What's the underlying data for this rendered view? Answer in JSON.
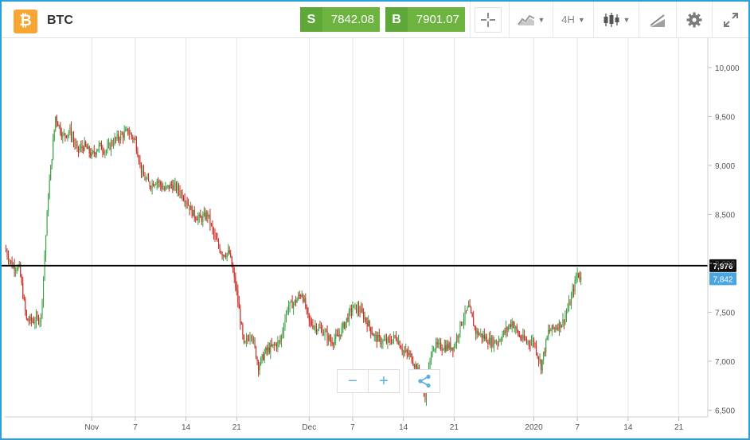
{
  "toolbar": {
    "logo_glyph": "₿",
    "symbol": "BTC",
    "sell_tag": "S",
    "sell_price": "7842.08",
    "buy_tag": "B",
    "buy_price": "7901.07",
    "interval": "4H",
    "icons": [
      "crosshair-icon",
      "line-chart-icon",
      "candlestick-icon",
      "drawing-tool-icon",
      "gear-icon",
      "expand-icon"
    ]
  },
  "zoom": {
    "minus": "−",
    "plus": "+",
    "share_icon": "share-icon"
  },
  "colors": {
    "up": "#3aa043",
    "down": "#c8281e",
    "accent": "#2a9fd8",
    "last_price": "#4aa6e0",
    "hline": "#000000"
  },
  "chart_data": {
    "type": "candlestick",
    "y_ticks": [
      "10,000",
      "9,500",
      "9,000",
      "8,500",
      "8,000",
      "7,500",
      "7,000",
      "6,500"
    ],
    "y_tick_values": [
      10000,
      9500,
      9000,
      8500,
      8000,
      7500,
      7000,
      6500
    ],
    "ylim": [
      6430,
      10300
    ],
    "x_ticks": [
      "Nov",
      "7",
      "14",
      "21",
      "Dec",
      "7",
      "14",
      "21",
      "2020",
      "7",
      "14",
      "21"
    ],
    "x_tick_dates": [
      "2019-11-01",
      "2019-11-07",
      "2019-11-14",
      "2019-11-21",
      "2019-12-01",
      "2019-12-07",
      "2019-12-14",
      "2019-12-21",
      "2020-01-01",
      "2020-01-07",
      "2020-01-14",
      "2020-01-21"
    ],
    "xlim": [
      "2019-10-20",
      "2020-01-25"
    ],
    "horizontal_line": {
      "value": 7976,
      "label": "7,976"
    },
    "last_price": {
      "value": 7842,
      "label": "7,842"
    },
    "interval": "4H",
    "anchors": [
      [
        "2019-10-20",
        8150
      ],
      [
        "2019-10-21",
        7980
      ],
      [
        "2019-10-22",
        7950
      ],
      [
        "2019-10-23",
        7420
      ],
      [
        "2019-10-24",
        7410
      ],
      [
        "2019-10-25",
        7450
      ],
      [
        "2019-10-26",
        8700
      ],
      [
        "2019-10-27",
        9500
      ],
      [
        "2019-10-28",
        9300
      ],
      [
        "2019-10-29",
        9350
      ],
      [
        "2019-10-30",
        9150
      ],
      [
        "2019-10-31",
        9200
      ],
      [
        "2019-11-01",
        9100
      ],
      [
        "2019-11-02",
        9200
      ],
      [
        "2019-11-03",
        9150
      ],
      [
        "2019-11-04",
        9250
      ],
      [
        "2019-11-05",
        9300
      ],
      [
        "2019-11-06",
        9350
      ],
      [
        "2019-11-07",
        9250
      ],
      [
        "2019-11-08",
        8900
      ],
      [
        "2019-11-09",
        8800
      ],
      [
        "2019-11-10",
        8850
      ],
      [
        "2019-11-11",
        8750
      ],
      [
        "2019-11-12",
        8800
      ],
      [
        "2019-11-13",
        8750
      ],
      [
        "2019-11-14",
        8650
      ],
      [
        "2019-11-15",
        8500
      ],
      [
        "2019-11-16",
        8450
      ],
      [
        "2019-11-17",
        8500
      ],
      [
        "2019-11-18",
        8250
      ],
      [
        "2019-11-19",
        8100
      ],
      [
        "2019-11-20",
        8100
      ],
      [
        "2019-11-21",
        7700
      ],
      [
        "2019-11-22",
        7150
      ],
      [
        "2019-11-23",
        7300
      ],
      [
        "2019-11-24",
        6950
      ],
      [
        "2019-11-25",
        7100
      ],
      [
        "2019-11-26",
        7150
      ],
      [
        "2019-11-27",
        7200
      ],
      [
        "2019-11-28",
        7550
      ],
      [
        "2019-11-29",
        7600
      ],
      [
        "2019-11-30",
        7700
      ],
      [
        "2019-12-01",
        7400
      ],
      [
        "2019-12-02",
        7350
      ],
      [
        "2019-12-03",
        7300
      ],
      [
        "2019-12-04",
        7200
      ],
      [
        "2019-12-05",
        7250
      ],
      [
        "2019-12-06",
        7400
      ],
      [
        "2019-12-07",
        7550
      ],
      [
        "2019-12-08",
        7520
      ],
      [
        "2019-12-09",
        7400
      ],
      [
        "2019-12-10",
        7250
      ],
      [
        "2019-12-11",
        7200
      ],
      [
        "2019-12-12",
        7200
      ],
      [
        "2019-12-13",
        7250
      ],
      [
        "2019-12-14",
        7100
      ],
      [
        "2019-12-15",
        7050
      ],
      [
        "2019-12-16",
        6900
      ],
      [
        "2019-12-17",
        6650
      ],
      [
        "2019-12-18",
        7150
      ],
      [
        "2019-12-19",
        7150
      ],
      [
        "2019-12-20",
        7150
      ],
      [
        "2019-12-21",
        7150
      ],
      [
        "2019-12-22",
        7400
      ],
      [
        "2019-12-23",
        7550
      ],
      [
        "2019-12-24",
        7300
      ],
      [
        "2019-12-25",
        7250
      ],
      [
        "2019-12-26",
        7200
      ],
      [
        "2019-12-27",
        7200
      ],
      [
        "2019-12-28",
        7300
      ],
      [
        "2019-12-29",
        7400
      ],
      [
        "2019-12-30",
        7250
      ],
      [
        "2019-12-31",
        7200
      ],
      [
        "2020-01-01",
        7200
      ],
      [
        "2020-01-02",
        6950
      ],
      [
        "2020-01-03",
        7300
      ],
      [
        "2020-01-04",
        7350
      ],
      [
        "2020-01-05",
        7400
      ],
      [
        "2020-01-06",
        7600
      ],
      [
        "2020-01-07",
        7900
      ],
      [
        "2020-01-07T12:00",
        7842
      ]
    ]
  }
}
